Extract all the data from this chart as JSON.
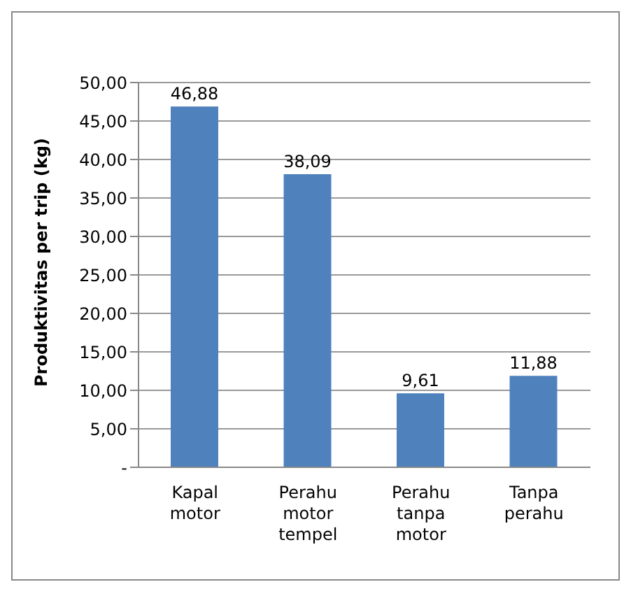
{
  "chart_data": {
    "type": "bar",
    "ylabel": "Produktivitas per trip (kg)",
    "categories": [
      "Kapal motor",
      "Perahu motor tempel",
      "Perahu tanpa motor",
      "Tanpa perahu"
    ],
    "values": [
      46.88,
      38.09,
      9.61,
      11.88
    ],
    "value_labels": [
      "46,88",
      "38,09",
      "9,61",
      "11,88"
    ],
    "color": "#4f81bd",
    "ylim": [
      0,
      50
    ],
    "yticks": [
      {
        "value": 0,
        "label": "-"
      },
      {
        "value": 5,
        "label": "5,00"
      },
      {
        "value": 10,
        "label": "10,00"
      },
      {
        "value": 15,
        "label": "15,00"
      },
      {
        "value": 20,
        "label": "20,00"
      },
      {
        "value": 25,
        "label": "25,00"
      },
      {
        "value": 30,
        "label": "30,00"
      },
      {
        "value": 35,
        "label": "35,00"
      },
      {
        "value": 40,
        "label": "40,00"
      },
      {
        "value": 45,
        "label": "45,00"
      },
      {
        "value": 50,
        "label": "50,00"
      }
    ],
    "grid": "y"
  }
}
